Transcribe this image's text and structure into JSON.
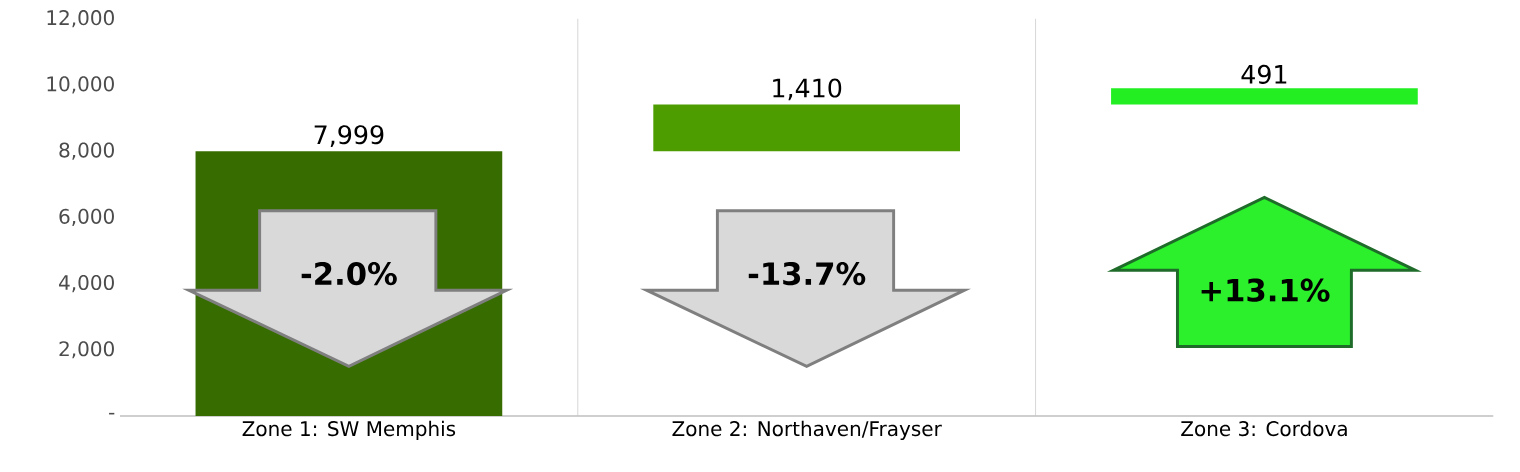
{
  "chart_data": {
    "type": "bar",
    "categories": [
      "Zone 1: SW Memphis",
      "Zone 2: Northaven/Frayser",
      "Zone 3: Cordova"
    ],
    "values": [
      7999,
      1410,
      491
    ],
    "base": [
      0,
      7999,
      9409
    ],
    "colors": [
      "#376d00",
      "#4e9d00",
      "#22ee22"
    ],
    "value_labels": [
      "7,999",
      "1,410",
      "491"
    ],
    "ylim": [
      0,
      12000
    ],
    "yticks": [
      {
        "value": 0,
        "label": "-"
      },
      {
        "value": 2000,
        "label": "2,000"
      },
      {
        "value": 4000,
        "label": "4,000"
      },
      {
        "value": 6000,
        "label": "6,000"
      },
      {
        "value": 8000,
        "label": "8,000"
      },
      {
        "value": 10000,
        "label": "10,000"
      },
      {
        "value": 12000,
        "label": "12,000"
      }
    ],
    "grid": "x",
    "annotations": [
      "-2.0%",
      "-13.7%",
      "+13.1%"
    ]
  }
}
